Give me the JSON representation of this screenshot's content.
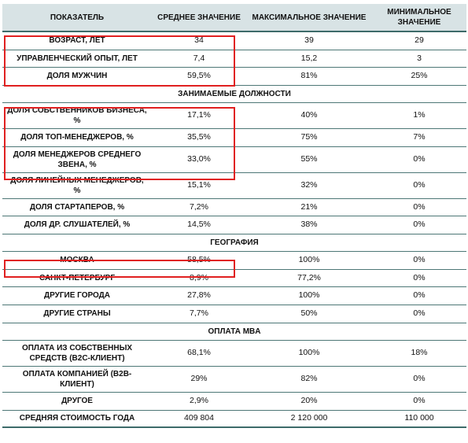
{
  "headers": [
    "ПОКАЗАТЕЛЬ",
    "СРЕДНЕЕ ЗНАЧЕНИЕ",
    "МАКСИМАЛЬНОЕ ЗНАЧЕНИЕ",
    "МИНИМАЛЬНОЕ ЗНАЧЕНИЕ"
  ],
  "rows": [
    {
      "label": "ВОЗРАСТ, ЛЕТ",
      "avg": "34",
      "max": "39",
      "min": "29"
    },
    {
      "label": "УПРАВЛЕНЧЕСКИЙ ОПЫТ, ЛЕТ",
      "avg": "7,4",
      "max": "15,2",
      "min": "3"
    },
    {
      "label": "ДОЛЯ МУЖЧИН",
      "avg": "59,5%",
      "max": "81%",
      "min": "25%"
    },
    {
      "section": "ЗАНИМАЕМЫЕ ДОЛЖНОСТИ"
    },
    {
      "label": "ДОЛЯ СОБСТВЕННИКОВ БИЗНЕСА, %",
      "avg": "17,1%",
      "max": "40%",
      "min": "1%"
    },
    {
      "label": "ДОЛЯ ТОП-МЕНЕДЖЕРОВ, %",
      "avg": "35,5%",
      "max": "75%",
      "min": "7%"
    },
    {
      "label": "ДОЛЯ МЕНЕДЖЕРОВ СРЕДНЕГО ЗВЕНА, %",
      "avg": "33,0%",
      "max": "55%",
      "min": "0%"
    },
    {
      "label": "ДОЛЯ ЛИНЕЙНЫХ МЕНЕДЖЕРОВ, %",
      "avg": "15,1%",
      "max": "32%",
      "min": "0%"
    },
    {
      "label": "ДОЛЯ СТАРТАПЕРОВ, %",
      "avg": "7,2%",
      "max": "21%",
      "min": "0%"
    },
    {
      "label": "ДОЛЯ ДР. СЛУШАТЕЛЕЙ, %",
      "avg": "14,5%",
      "max": "38%",
      "min": "0%"
    },
    {
      "section": "ГЕОГРАФИЯ"
    },
    {
      "label": "МОСКВА",
      "avg": "58,5%",
      "max": "100%",
      "min": "0%"
    },
    {
      "label": "САНКТ-ПЕТЕРБУРГ",
      "avg": "8,9%",
      "max": "77,2%",
      "min": "0%"
    },
    {
      "label": "ДРУГИЕ ГОРОДА",
      "avg": "27,8%",
      "max": "100%",
      "min": "0%"
    },
    {
      "label": "ДРУГИЕ СТРАНЫ",
      "avg": "7,7%",
      "max": "50%",
      "min": "0%"
    },
    {
      "section": "ОПЛАТА MBA"
    },
    {
      "label": "ОПЛАТА ИЗ СОБСТВЕННЫХ СРЕДСТВ (B2C-КЛИЕНТ)",
      "avg": "68,1%",
      "max": "100%",
      "min": "18%"
    },
    {
      "label": "ОПЛАТА КОМПАНИЕЙ (B2B-КЛИЕНТ)",
      "avg": "29%",
      "max": "82%",
      "min": "0%"
    },
    {
      "label": "ДРУГОЕ",
      "avg": "2,9%",
      "max": "20%",
      "min": "0%"
    },
    {
      "label": "СРЕДНЯЯ СТОИМОСТЬ ГОДА",
      "avg": "409 804",
      "max": "2 120 000",
      "min": "110 000"
    }
  ],
  "highlight_color": "#e02020"
}
